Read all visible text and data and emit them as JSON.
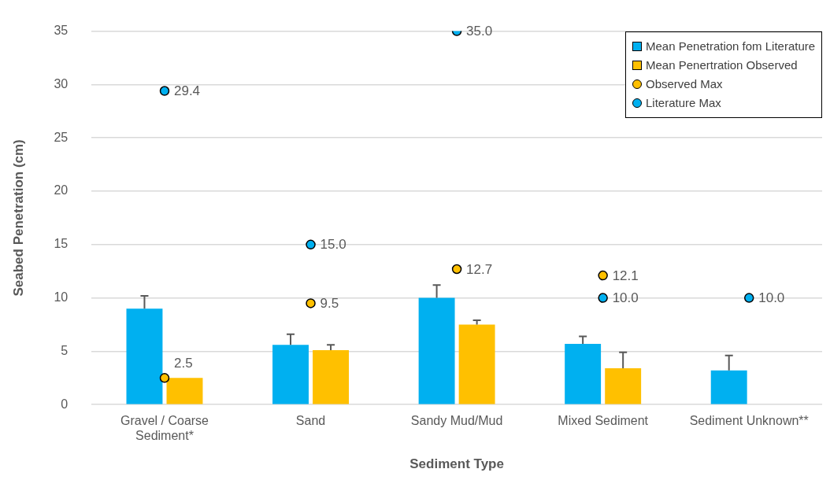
{
  "chart_data": {
    "type": "bar",
    "xlabel": "Sediment Type",
    "ylabel": "Seabed Penetration (cm)",
    "categories": [
      "Gravel / Coarse Sediment*",
      "Sand",
      "Sandy Mud/Mud",
      "Mixed Sediment",
      "Sediment Unknown**"
    ],
    "series": [
      {
        "name": "Mean Penetration fom Literature",
        "color": "#00b0f0",
        "values": [
          9.0,
          5.6,
          10.0,
          5.7,
          3.2
        ],
        "errors": [
          [
            9.0,
            10.2
          ],
          [
            5.6,
            6.6
          ],
          [
            10.0,
            11.2
          ],
          [
            5.7,
            6.4
          ],
          [
            3.2,
            4.6
          ]
        ]
      },
      {
        "name": "Mean Penertration Observed",
        "color": "#ffc000",
        "values": [
          2.5,
          5.1,
          7.5,
          3.4,
          null
        ],
        "errors": [
          null,
          [
            5.1,
            5.6
          ],
          [
            7.5,
            7.9
          ],
          [
            3.4,
            4.9
          ],
          null
        ]
      },
      {
        "name": "Observed Max",
        "type": "scatter",
        "marker": "circle",
        "color": "#ffc000",
        "values": [
          2.5,
          9.5,
          12.7,
          12.1,
          null
        ],
        "value_labels": [
          "2.5",
          "9.5",
          "12.7",
          "12.1",
          null
        ]
      },
      {
        "name": "Literature Max",
        "type": "scatter",
        "marker": "circle",
        "color": "#00b0f0",
        "values": [
          29.4,
          15.0,
          35.0,
          10.0,
          10.0
        ],
        "value_labels": [
          "29.4",
          "15.0",
          "35.0",
          "10.0",
          "10.0"
        ]
      }
    ],
    "ylim": [
      0,
      35
    ],
    "yticks": [
      0,
      5,
      10,
      15,
      20,
      25,
      30,
      35
    ],
    "grid": "y",
    "legend": "top right"
  }
}
